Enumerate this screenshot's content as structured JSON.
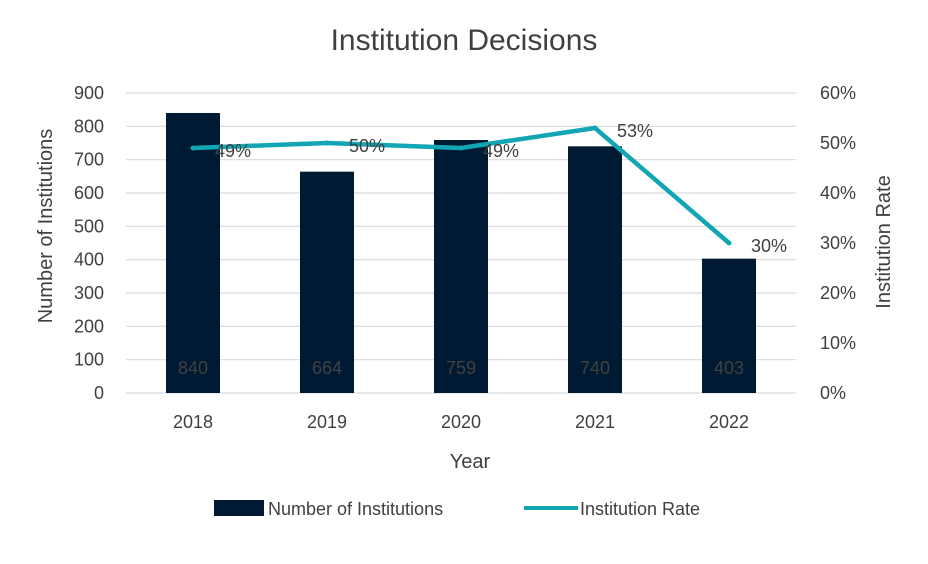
{
  "chart_data": {
    "type": "bar",
    "title": "Institution Decisions",
    "categories": [
      "2018",
      "2019",
      "2020",
      "2021",
      "2022"
    ],
    "xlabel": "Year",
    "ylabel": "Number of Institutions",
    "y2label": "Institution Rate",
    "ylim": [
      0,
      900
    ],
    "y2lim": [
      0,
      60
    ],
    "yticks": [
      "0",
      "100",
      "200",
      "300",
      "400",
      "500",
      "600",
      "700",
      "800",
      "900"
    ],
    "y2ticks": [
      "0%",
      "10%",
      "20%",
      "30%",
      "40%",
      "50%",
      "60%"
    ],
    "grid": true,
    "legend_position": "bottom",
    "series": [
      {
        "name": "Number of Institutions",
        "type": "bar",
        "axis": "left",
        "color": "#001a33",
        "values": [
          840,
          664,
          759,
          740,
          403
        ],
        "labels": [
          "840",
          "664",
          "759",
          "740",
          "403"
        ]
      },
      {
        "name": "Institution Rate",
        "type": "line",
        "axis": "right",
        "color": "#12a5b3",
        "values": [
          49,
          50,
          49,
          53,
          30
        ],
        "labels": [
          "49%",
          "50%",
          "49%",
          "53%",
          "30%"
        ]
      }
    ]
  }
}
